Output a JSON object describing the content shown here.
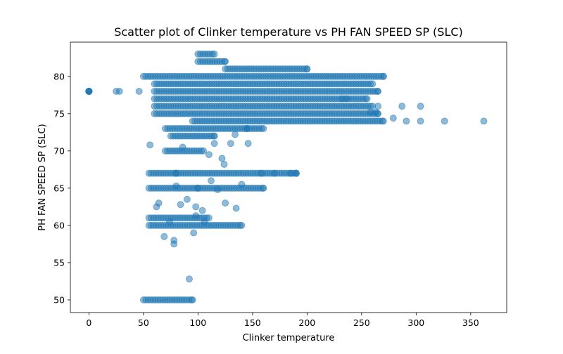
{
  "chart_data": {
    "type": "scatter",
    "title": "Scatter plot of Clinker temperature vs PH FAN SPEED SP (SLC)",
    "xlabel": "Clinker temperature",
    "ylabel": "PH FAN SPEED SP (SLC)",
    "xlim": [
      -17,
      383
    ],
    "ylim": [
      48.3,
      84.6
    ],
    "xticks": [
      0,
      50,
      100,
      150,
      200,
      250,
      300,
      350
    ],
    "yticks": [
      50,
      55,
      60,
      65,
      70,
      75,
      80
    ],
    "grid": false,
    "legend": "none",
    "marker_color": "#1f77b4",
    "marker_alpha": 0.5,
    "clusters": [
      {
        "x": [
          0,
          0
        ],
        "y": 78
      },
      {
        "x": [
          50,
          95
        ],
        "y": 50
      },
      {
        "x": [
          55,
          140
        ],
        "y": 60
      },
      {
        "x": [
          55,
          110
        ],
        "y": 61
      },
      {
        "x": [
          55,
          100
        ],
        "y": 65
      },
      {
        "x": [
          100,
          160
        ],
        "y": 65
      },
      {
        "x": [
          55,
          80
        ],
        "y": 67
      },
      {
        "x": [
          80,
          190
        ],
        "y": 67
      },
      {
        "x": [
          70,
          105
        ],
        "y": 70
      },
      {
        "x": [
          75,
          115
        ],
        "y": 72
      },
      {
        "x": [
          70,
          145
        ],
        "y": 73
      },
      {
        "x": [
          145,
          160
        ],
        "y": 73
      },
      {
        "x": [
          95,
          270
        ],
        "y": 74
      },
      {
        "x": [
          60,
          265
        ],
        "y": 75
      },
      {
        "x": [
          60,
          260
        ],
        "y": 76
      },
      {
        "x": [
          60,
          255
        ],
        "y": 77
      },
      {
        "x": [
          60,
          265
        ],
        "y": 78
      },
      {
        "x": [
          60,
          260
        ],
        "y": 79
      },
      {
        "x": [
          50,
          270
        ],
        "y": 80
      },
      {
        "x": [
          125,
          200
        ],
        "y": 81
      },
      {
        "x": [
          100,
          125
        ],
        "y": 82
      },
      {
        "x": [
          100,
          115
        ],
        "y": 83
      }
    ],
    "points": [
      {
        "x": 25,
        "y": 78
      },
      {
        "x": 28,
        "y": 78
      },
      {
        "x": 46,
        "y": 78
      },
      {
        "x": 56,
        "y": 70.8
      },
      {
        "x": 62,
        "y": 62.5
      },
      {
        "x": 64,
        "y": 63
      },
      {
        "x": 69,
        "y": 58.5
      },
      {
        "x": 74,
        "y": 60.5
      },
      {
        "x": 78,
        "y": 58
      },
      {
        "x": 78,
        "y": 57.5
      },
      {
        "x": 80,
        "y": 65.3
      },
      {
        "x": 84,
        "y": 62.8
      },
      {
        "x": 86,
        "y": 70.5
      },
      {
        "x": 90,
        "y": 63.5
      },
      {
        "x": 92,
        "y": 52.8
      },
      {
        "x": 96,
        "y": 59
      },
      {
        "x": 98,
        "y": 62.5
      },
      {
        "x": 98,
        "y": 61.3
      },
      {
        "x": 104,
        "y": 62
      },
      {
        "x": 106,
        "y": 60.5
      },
      {
        "x": 110,
        "y": 69.5
      },
      {
        "x": 112,
        "y": 66
      },
      {
        "x": 115,
        "y": 71
      },
      {
        "x": 118,
        "y": 64.8
      },
      {
        "x": 122,
        "y": 69
      },
      {
        "x": 124,
        "y": 68.2
      },
      {
        "x": 125,
        "y": 63
      },
      {
        "x": 130,
        "y": 71
      },
      {
        "x": 134,
        "y": 72.2
      },
      {
        "x": 135,
        "y": 62.3
      },
      {
        "x": 140,
        "y": 65.5
      },
      {
        "x": 146,
        "y": 71
      },
      {
        "x": 158,
        "y": 67
      },
      {
        "x": 170,
        "y": 67
      },
      {
        "x": 185,
        "y": 67
      },
      {
        "x": 190,
        "y": 67
      },
      {
        "x": 232,
        "y": 77
      },
      {
        "x": 236,
        "y": 77
      },
      {
        "x": 258,
        "y": 75.2
      },
      {
        "x": 263,
        "y": 75.2
      },
      {
        "x": 265,
        "y": 76
      },
      {
        "x": 279,
        "y": 74.4
      },
      {
        "x": 287,
        "y": 76
      },
      {
        "x": 291,
        "y": 74
      },
      {
        "x": 304,
        "y": 76
      },
      {
        "x": 304,
        "y": 74
      },
      {
        "x": 326,
        "y": 74
      },
      {
        "x": 362,
        "y": 74
      }
    ]
  }
}
